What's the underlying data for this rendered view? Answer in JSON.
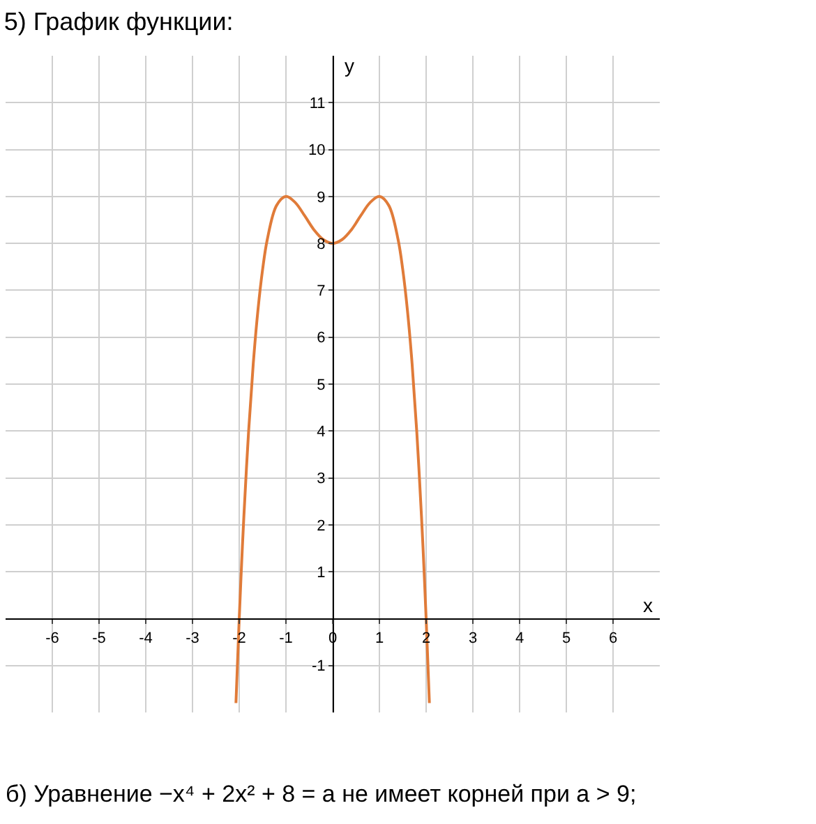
{
  "chart_data": {
    "type": "line",
    "title": "5) График функции:",
    "xlabel": "x",
    "ylabel": "y",
    "x": [
      -2.07,
      -2,
      -1.95,
      -1.9,
      -1.8,
      -1.7,
      -1.6,
      -1.5,
      -1.4,
      -1.2,
      -1,
      -0.8,
      -0.6,
      -0.4,
      -0.2,
      0,
      0.2,
      0.4,
      0.6,
      0.8,
      1,
      1.2,
      1.4,
      1.5,
      1.6,
      1.7,
      1.8,
      1.9,
      1.95,
      2,
      2.07
    ],
    "series": [
      {
        "color": "#e07b39",
        "values": [
          -1.8,
          0,
          1.15,
          2.19,
          3.98,
          5.43,
          6.57,
          7.44,
          8.08,
          8.81,
          9,
          8.87,
          8.59,
          8.29,
          8.08,
          8,
          8.08,
          8.29,
          8.59,
          8.87,
          9,
          8.81,
          8.08,
          7.44,
          6.57,
          5.43,
          3.98,
          2.19,
          1.15,
          0,
          -1.8
        ]
      }
    ],
    "xlim": [
      -7,
      7
    ],
    "ylim": [
      -2,
      12
    ],
    "xticks": [
      -6,
      -5,
      -4,
      -3,
      -2,
      -1,
      0,
      1,
      2,
      3,
      4,
      5,
      6
    ],
    "yticks": [
      -1,
      1,
      2,
      3,
      4,
      5,
      6,
      7,
      8,
      9,
      10,
      11
    ],
    "grid": true,
    "legend": false,
    "marker": "none",
    "line_style": "solid",
    "annotations": [
      "б) Уравнение −x⁴ + 2x² + 8 = a не имеет корней при a > 9;"
    ]
  }
}
